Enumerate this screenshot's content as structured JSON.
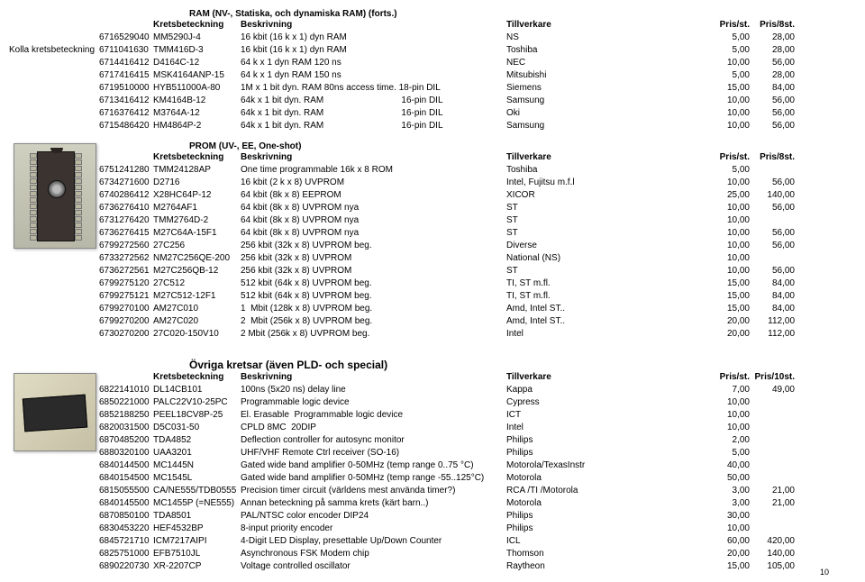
{
  "sections": {
    "ram": {
      "title": "RAM (NV-, Statiska, och dynamiska RAM) (forts.)",
      "check_label": "Kolla kretsbeteckning",
      "headers": {
        "part": "Kretsbeteckning",
        "desc": "Beskrivning",
        "mfr": "Tillverkare",
        "p1": "Pris/st.",
        "p2": "Pris/8st."
      },
      "rows": [
        {
          "code": "6716529040",
          "part": "MM5290J-4",
          "desc": "16 kbit (16 k x 1) dyn RAM",
          "mfr": "NS",
          "p1": "5,00",
          "p2": "28,00"
        },
        {
          "code": "6711041630",
          "part": "TMM416D-3",
          "desc": "16 kbit (16 k x 1) dyn RAM",
          "mfr": "Toshiba",
          "p1": "5,00",
          "p2": "28,00"
        },
        {
          "code": "6714416412",
          "part": "D4164C-12",
          "desc": "64 k x 1 dyn RAM 120 ns",
          "mfr": "NEC",
          "p1": "10,00",
          "p2": "56,00"
        },
        {
          "code": "6717416415",
          "part": "MSK4164ANP-15",
          "desc": "64 k x 1 dyn RAM 150 ns",
          "mfr": "Mitsubishi",
          "p1": "5,00",
          "p2": "28,00"
        },
        {
          "code": "6719510000",
          "part": "HYB511000A-80",
          "desc": "1M x 1 bit dyn. RAM 80ns access time. 18-pin DIL",
          "mfr": "Siemens",
          "p1": "15,00",
          "p2": "84,00"
        },
        {
          "code": "6713416412",
          "part": "KM4164B-12",
          "desc": "64k x 1 bit dyn. RAM                               16-pin DIL",
          "mfr": "Samsung",
          "p1": "10,00",
          "p2": "56,00"
        },
        {
          "code": "6716376412",
          "part": "M3764A-12",
          "desc": "64k x 1 bit dyn. RAM                               16-pin DIL",
          "mfr": "Oki",
          "p1": "10,00",
          "p2": "56,00"
        },
        {
          "code": "6715486420",
          "part": "HM4864P-2",
          "desc": "64k x 1 bit dyn. RAM                               16-pin DIL",
          "mfr": "Samsung",
          "p1": "10,00",
          "p2": "56,00"
        }
      ]
    },
    "prom": {
      "title": "PROM (UV-, EE, One-shot)",
      "headers": {
        "part": "Kretsbeteckning",
        "desc": "Beskrivning",
        "mfr": "Tillverkare",
        "p1": "Pris/st.",
        "p2": "Pris/8st."
      },
      "rows": [
        {
          "code": "6751241280",
          "part": "TMM24128AP",
          "desc": "One time programmable 16k x 8 ROM",
          "mfr": "Toshiba",
          "p1": "5,00",
          "p2": ""
        },
        {
          "code": "6734271600",
          "part": "D2716",
          "desc": "16 kbit (2 k x 8) UVPROM",
          "mfr": "Intel, Fujitsu m.f.l",
          "p1": "10,00",
          "p2": "56,00"
        },
        {
          "code": "6740286412",
          "part": "X28HC64P-12",
          "desc": "64 kbit (8k x 8) EEPROM",
          "mfr": "XICOR",
          "p1": "25,00",
          "p2": "140,00"
        },
        {
          "code": "6736276410",
          "part": "M2764AF1",
          "desc": "64 kbit (8k x 8) UVPROM nya",
          "mfr": "ST",
          "p1": "10,00",
          "p2": "56,00"
        },
        {
          "code": "6731276420",
          "part": "TMM2764D-2",
          "desc": "64 kbit (8k x 8) UVPROM nya",
          "mfr": "ST",
          "p1": "10,00",
          "p2": ""
        },
        {
          "code": "6736276415",
          "part": "M27C64A-15F1",
          "desc": "64 kbit (8k x 8) UVPROM nya",
          "mfr": "ST",
          "p1": "10,00",
          "p2": "56,00"
        },
        {
          "code": "6799272560",
          "part": "27C256",
          "desc": "256 kbit (32k x 8) UVPROM beg.",
          "mfr": "Diverse",
          "p1": "10,00",
          "p2": "56,00"
        },
        {
          "code": "6733272562",
          "part": "NM27C256QE-200",
          "desc": "256 kbit (32k x 8) UVPROM",
          "mfr": "National (NS)",
          "p1": "10,00",
          "p2": ""
        },
        {
          "code": "6736272561",
          "part": "M27C256QB-12",
          "desc": "256 kbit (32k x 8) UVPROM",
          "mfr": "ST",
          "p1": "10,00",
          "p2": "56,00"
        },
        {
          "code": "6799275120",
          "part": "27C512",
          "desc": "512 kbit (64k x 8) UVPROM beg.",
          "mfr": "TI, ST m.fl.",
          "p1": "15,00",
          "p2": "84,00"
        },
        {
          "code": "6799275121",
          "part": "M27C512-12F1",
          "desc": "512 kbit (64k x 8) UVPROM beg.",
          "mfr": "TI, ST m.fl.",
          "p1": "15,00",
          "p2": "84,00"
        },
        {
          "code": "6799270100",
          "part": "AM27C010",
          "desc": "1  Mbit (128k x 8) UVPROM beg.",
          "mfr": "Amd, Intel ST..",
          "p1": "15,00",
          "p2": "84,00"
        },
        {
          "code": "6799270200",
          "part": "AM27C020",
          "desc": "2  Mbit (256k x 8) UVPROM beg.",
          "mfr": "Amd, Intel ST..",
          "p1": "20,00",
          "p2": "112,00"
        },
        {
          "code": "6730270200",
          "part": "27C020-150V10",
          "desc": "2 Mbit (256k x 8) UVPROM beg.",
          "mfr": "Intel",
          "p1": "20,00",
          "p2": "112,00"
        }
      ]
    },
    "other": {
      "title": "Övriga kretsar (även PLD- och special)",
      "headers": {
        "part": "Kretsbeteckning",
        "desc": "Beskrivning",
        "mfr": "Tillverkare",
        "p1": "Pris/st.",
        "p2": "Pris/10st."
      },
      "rows": [
        {
          "code": "6822141010",
          "part": "DL14CB101",
          "desc": "100ns (5x20 ns) delay line",
          "mfr": "Kappa",
          "p1": "7,00",
          "p2": "49,00"
        },
        {
          "code": "6850221000",
          "part": "PALC22V10-25PC",
          "desc": "Programmable logic device",
          "mfr": "Cypress",
          "p1": "10,00",
          "p2": ""
        },
        {
          "code": "6852188250",
          "part": "PEEL18CV8P-25",
          "desc": "El. Erasable  Programmable logic device",
          "mfr": "ICT",
          "p1": "10,00",
          "p2": ""
        },
        {
          "code": "6820031500",
          "part": "D5C031-50",
          "desc": "CPLD 8MC  20DIP",
          "mfr": "Intel",
          "p1": "10,00",
          "p2": ""
        },
        {
          "code": "6870485200",
          "part": "TDA4852",
          "desc": "Deflection controller for autosync monitor",
          "mfr": "Philips",
          "p1": "2,00",
          "p2": ""
        },
        {
          "code": "6880320100",
          "part": "UAA3201",
          "desc": "UHF/VHF Remote Ctrl receiver (SO-16)",
          "mfr": "Philips",
          "p1": "5,00",
          "p2": ""
        },
        {
          "code": "6840144500",
          "part": "MC1445N",
          "desc": "Gated wide band amplifier 0-50MHz (temp range 0..75 °C)",
          "mfr": "Motorola/TexasInstr",
          "p1": "40,00",
          "p2": ""
        },
        {
          "code": "6840154500",
          "part": "MC1545L",
          "desc": "Gated wide band amplifier 0-50MHz (temp range -55..125°C)",
          "mfr": "Motorola",
          "p1": "50,00",
          "p2": ""
        },
        {
          "code": "6815055500",
          "part": "CA/NE555/TDB0555",
          "desc": "Precision timer circuit (världens mest använda timer?)",
          "mfr": "RCA /TI /Motorola",
          "p1": "3,00",
          "p2": "21,00"
        },
        {
          "code": "6840145500",
          "part": "MC1455P (=NE555)",
          "desc": "Annan beteckning på samma krets (kärt barn..)",
          "mfr": "Motorola",
          "p1": "3,00",
          "p2": "21,00"
        },
        {
          "code": "6870850100",
          "part": "TDA8501",
          "desc": "PAL/NTSC color encoder DIP24",
          "mfr": "Philips",
          "p1": "30,00",
          "p2": ""
        },
        {
          "code": "6830453220",
          "part": "HEF4532BP",
          "desc": "8-input priority encoder",
          "mfr": "Philips",
          "p1": "10,00",
          "p2": ""
        },
        {
          "code": "6845721710",
          "part": "ICM7217AIPI",
          "desc": "4-Digit LED Display, presettable Up/Down Counter",
          "mfr": "ICL",
          "p1": "60,00",
          "p2": "420,00"
        },
        {
          "code": "6825751000",
          "part": "EFB7510JL",
          "desc": "Asynchronous FSK Modem chip",
          "mfr": "Thomson",
          "p1": "20,00",
          "p2": "140,00"
        },
        {
          "code": "6890220730",
          "part": "XR-2207CP",
          "desc": "Voltage controlled oscillator",
          "mfr": "Raytheon",
          "p1": "15,00",
          "p2": "105,00"
        }
      ]
    }
  },
  "page_num": "10"
}
